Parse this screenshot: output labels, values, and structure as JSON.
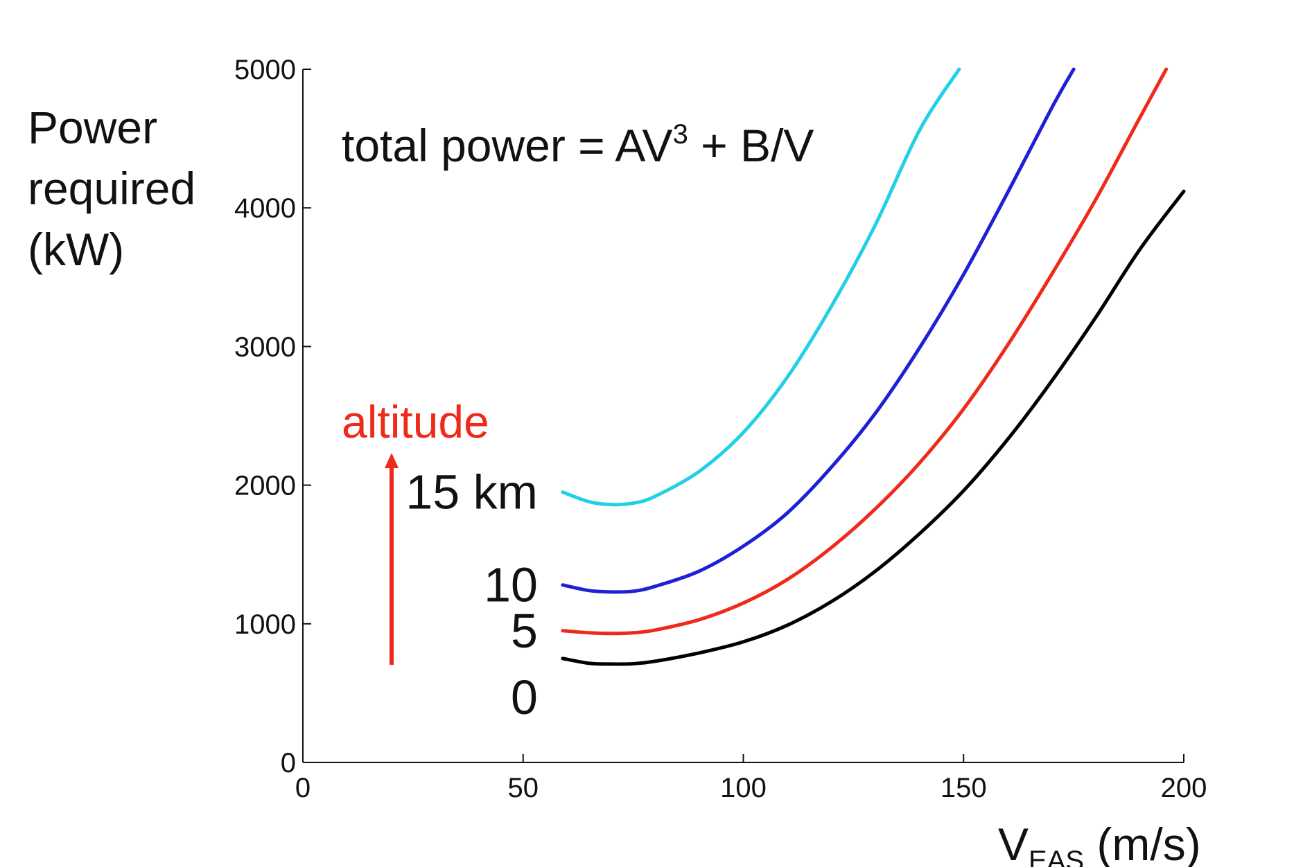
{
  "chart_data": {
    "type": "line",
    "ylabel_lines": [
      "Power",
      "required",
      "(kW)"
    ],
    "xlabel": {
      "main": "V",
      "sub": "EAS",
      "rest": " (m/s)"
    },
    "formula": {
      "prefix": "total power = AV",
      "sup": "3",
      "suffix": " + B/V"
    },
    "xlim": [
      0,
      200
    ],
    "ylim": [
      0,
      5000
    ],
    "xticks": [
      0,
      50,
      100,
      150,
      200
    ],
    "yticks": [
      0,
      1000,
      2000,
      3000,
      4000,
      5000
    ],
    "annotation": {
      "text": "altitude",
      "color": "#ee2a1b"
    },
    "series": [
      {
        "label": "0",
        "color": "#000000",
        "x": [
          59,
          65,
          70,
          75,
          80,
          90,
          100,
          110,
          120,
          130,
          140,
          150,
          160,
          170,
          180,
          190,
          200
        ],
        "y": [
          750,
          715,
          710,
          712,
          730,
          790,
          870,
          990,
          1160,
          1380,
          1650,
          1960,
          2330,
          2750,
          3210,
          3700,
          4120
        ]
      },
      {
        "label": "5",
        "color": "#ee2a1b",
        "x": [
          59,
          65,
          70,
          75,
          80,
          90,
          100,
          110,
          120,
          130,
          140,
          150,
          160,
          170,
          180,
          190,
          196
        ],
        "y": [
          950,
          935,
          930,
          935,
          955,
          1030,
          1150,
          1320,
          1550,
          1830,
          2160,
          2550,
          3010,
          3520,
          4060,
          4650,
          5000
        ]
      },
      {
        "label": "10",
        "color": "#1f1fd6",
        "x": [
          59,
          65,
          70,
          75,
          80,
          90,
          100,
          110,
          120,
          130,
          140,
          150,
          160,
          170,
          175
        ],
        "y": [
          1280,
          1240,
          1230,
          1235,
          1270,
          1380,
          1560,
          1800,
          2130,
          2520,
          2990,
          3520,
          4110,
          4720,
          5000
        ]
      },
      {
        "label": "15 km",
        "color": "#22d0e6",
        "x": [
          59,
          65,
          70,
          75,
          80,
          90,
          100,
          110,
          120,
          130,
          140,
          149
        ],
        "y": [
          1950,
          1880,
          1860,
          1870,
          1920,
          2100,
          2380,
          2780,
          3290,
          3880,
          4560,
          5000
        ]
      }
    ]
  }
}
